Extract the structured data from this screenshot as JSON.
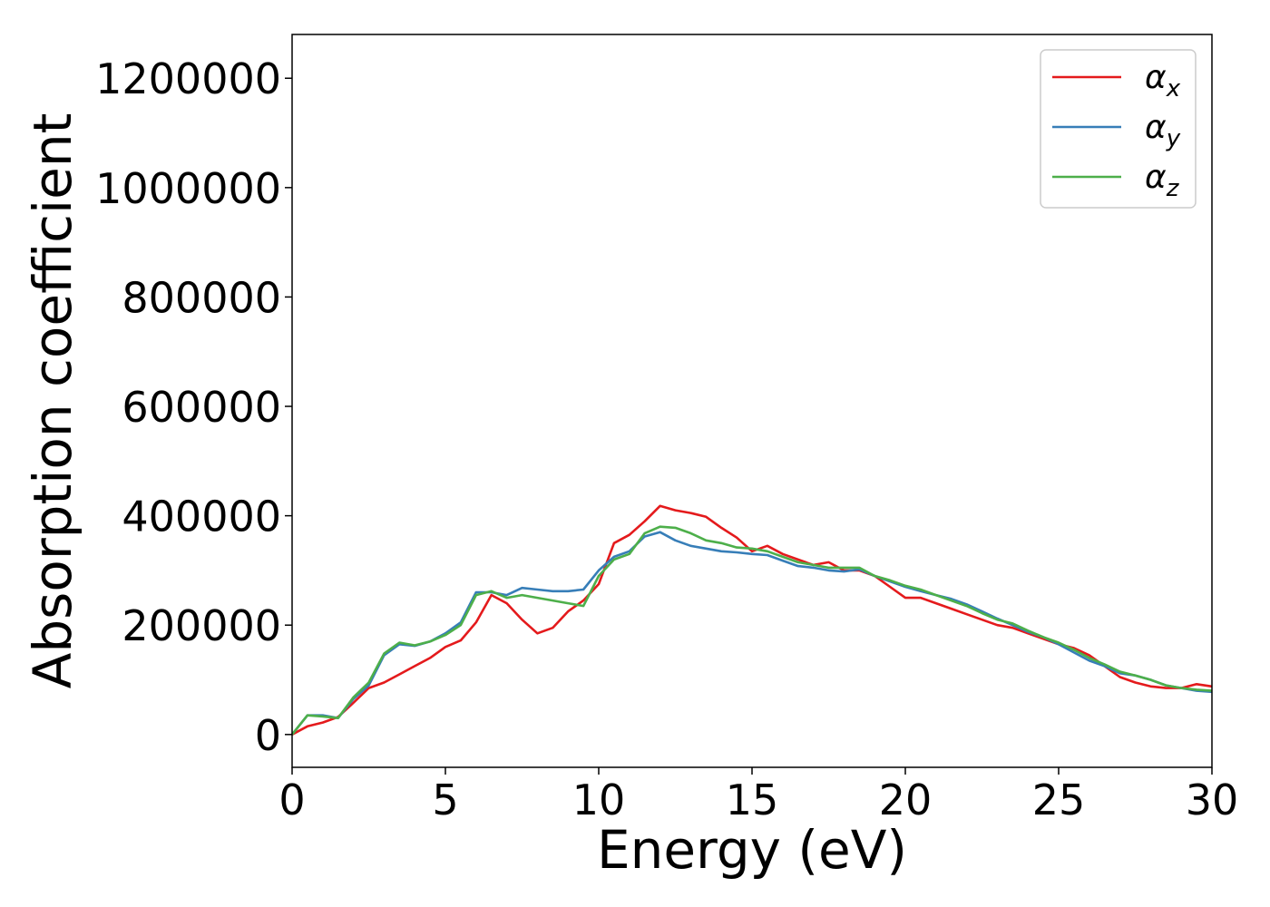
{
  "chart_data": {
    "type": "line",
    "title": "",
    "xlabel": "Energy (eV)",
    "ylabel": "Absorption coefficient",
    "xlim": [
      0,
      30
    ],
    "ylim": [
      -60000,
      1280000
    ],
    "xticks": [
      0,
      5,
      10,
      15,
      20,
      25,
      30
    ],
    "xtick_labels": [
      "0",
      "5",
      "10",
      "15",
      "20",
      "25",
      "30"
    ],
    "yticks": [
      0,
      200000,
      400000,
      600000,
      800000,
      1000000,
      1200000
    ],
    "ytick_labels": [
      "0",
      "200000",
      "400000",
      "600000",
      "800000",
      "1000000",
      "1200000"
    ],
    "grid": false,
    "legend_position": "top-right",
    "x": [
      0,
      0.5,
      1,
      1.5,
      2,
      2.5,
      3,
      3.5,
      4,
      4.5,
      5,
      5.5,
      6,
      6.5,
      7,
      7.5,
      8,
      8.5,
      9,
      9.5,
      10,
      10.5,
      11,
      11.5,
      12,
      12.5,
      13,
      13.5,
      14,
      14.5,
      15,
      15.5,
      16,
      16.5,
      17,
      17.5,
      18,
      18.5,
      19,
      19.5,
      20,
      20.5,
      21,
      21.5,
      22,
      22.5,
      23,
      23.5,
      24,
      24.5,
      25,
      25.5,
      26,
      26.5,
      27,
      27.5,
      28,
      28.5,
      29,
      29.5,
      30
    ],
    "series": [
      {
        "name": "α",
        "subscript": "x",
        "color": "#e41a1c",
        "values": [
          0,
          15000,
          22000,
          32000,
          58000,
          85000,
          95000,
          110000,
          125000,
          140000,
          160000,
          172000,
          205000,
          255000,
          240000,
          210000,
          185000,
          195000,
          225000,
          245000,
          275000,
          350000,
          365000,
          390000,
          418000,
          410000,
          405000,
          398000,
          378000,
          360000,
          335000,
          345000,
          330000,
          320000,
          310000,
          315000,
          300000,
          300000,
          290000,
          270000,
          250000,
          250000,
          240000,
          230000,
          220000,
          210000,
          200000,
          195000,
          185000,
          175000,
          165000,
          158000,
          145000,
          125000,
          105000,
          95000,
          88000,
          85000,
          85000,
          92000,
          88000
        ]
      },
      {
        "name": "α",
        "subscript": "y",
        "color": "#377eb8",
        "values": [
          0,
          35000,
          35000,
          30000,
          65000,
          90000,
          145000,
          165000,
          162000,
          170000,
          185000,
          205000,
          260000,
          260000,
          255000,
          268000,
          265000,
          262000,
          262000,
          265000,
          300000,
          325000,
          335000,
          362000,
          370000,
          355000,
          345000,
          340000,
          335000,
          333000,
          330000,
          328000,
          318000,
          308000,
          305000,
          300000,
          298000,
          302000,
          290000,
          280000,
          270000,
          262000,
          255000,
          248000,
          238000,
          225000,
          212000,
          200000,
          188000,
          178000,
          165000,
          150000,
          135000,
          125000,
          112000,
          108000,
          100000,
          90000,
          85000,
          80000,
          78000
        ]
      },
      {
        "name": "α",
        "subscript": "z",
        "color": "#4daf4a",
        "values": [
          0,
          35000,
          33000,
          30000,
          68000,
          95000,
          148000,
          168000,
          163000,
          170000,
          182000,
          200000,
          255000,
          262000,
          250000,
          255000,
          250000,
          245000,
          240000,
          235000,
          290000,
          320000,
          330000,
          368000,
          380000,
          378000,
          368000,
          355000,
          350000,
          342000,
          340000,
          335000,
          325000,
          315000,
          310000,
          305000,
          305000,
          305000,
          290000,
          282000,
          272000,
          265000,
          255000,
          245000,
          235000,
          222000,
          210000,
          203000,
          190000,
          178000,
          168000,
          155000,
          140000,
          128000,
          115000,
          108000,
          100000,
          90000,
          85000,
          82000,
          80000
        ]
      }
    ]
  }
}
